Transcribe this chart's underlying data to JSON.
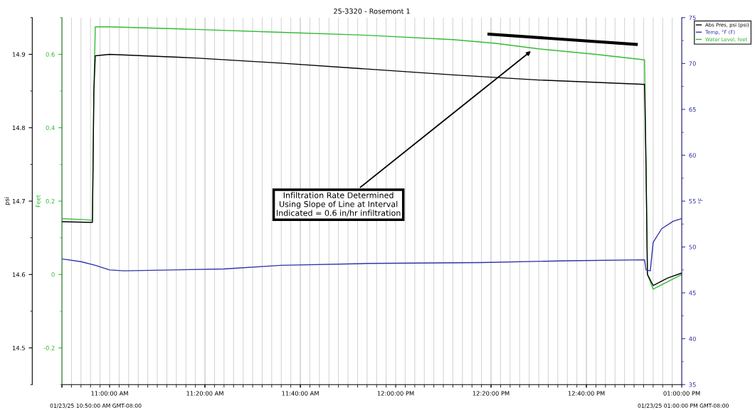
{
  "chart_data": {
    "type": "line",
    "title": "25-3320 - Rosemont 1",
    "ylabel": "Feet",
    "y2label": "psi",
    "y3label": "°F",
    "xlim": [
      10.8333,
      13.0
    ],
    "xticks": [
      {
        "value": 10.8333,
        "label": null
      },
      {
        "value": 11.0,
        "label": "11:00:00 AM"
      },
      {
        "value": 11.3333,
        "label": "11:20:00 AM"
      },
      {
        "value": 11.6667,
        "label": "11:40:00 AM"
      },
      {
        "value": 12.0,
        "label": "12:00:00 PM"
      },
      {
        "value": 12.3333,
        "label": "12:20:00 PM"
      },
      {
        "value": 12.6667,
        "label": "12:40:00 PM"
      },
      {
        "value": 13.0,
        "label": "01:00:00 PM"
      }
    ],
    "ylim": [
      -0.3,
      0.7
    ],
    "yticks": [
      -0.2,
      0,
      0.2,
      0.4,
      0.6
    ],
    "y2lim": [
      14.45,
      14.95
    ],
    "y2ticks": [
      14.5,
      14.6,
      14.7,
      14.8,
      14.9
    ],
    "y3lim": [
      35,
      75
    ],
    "y3ticks": [
      35,
      40,
      45,
      50,
      55,
      60,
      65,
      70,
      75
    ],
    "grid": "x",
    "legend": "top right",
    "marker": "none",
    "line_style": "solid",
    "series": [
      {
        "name": "Abs Pres, psi (psi)",
        "color": "#000000",
        "axis": "y2",
        "x": [
          10.8333,
          10.94,
          10.945,
          10.95,
          11.0,
          11.3,
          11.6,
          11.9,
          12.2,
          12.5,
          12.87,
          12.875,
          12.88,
          12.9,
          12.95,
          13.0
        ],
        "values": [
          14.672,
          14.671,
          14.85,
          14.898,
          14.9,
          14.895,
          14.888,
          14.88,
          14.872,
          14.865,
          14.859,
          14.75,
          14.6,
          14.585,
          14.595,
          14.602
        ]
      },
      {
        "name": "Temp, °F (F)",
        "color": "#3333aa",
        "axis": "y3",
        "x": [
          10.8333,
          10.9,
          10.95,
          11.0,
          11.05,
          11.4,
          11.6,
          11.9,
          12.3,
          12.6,
          12.87,
          12.875,
          12.89,
          12.9,
          12.93,
          12.97,
          13.0
        ],
        "values": [
          48.7,
          48.4,
          48.0,
          47.5,
          47.4,
          47.6,
          48.0,
          48.2,
          48.3,
          48.5,
          48.6,
          47.5,
          47.4,
          50.5,
          52.0,
          52.8,
          53.1
        ]
      },
      {
        "name": "Water Level, feet",
        "color": "#33bb33",
        "axis": "y",
        "x": [
          10.8333,
          10.9,
          10.94,
          10.945,
          10.95,
          11.0,
          11.3,
          11.6,
          11.9,
          12.2,
          12.35,
          12.5,
          12.7,
          12.87,
          12.875,
          12.88,
          12.9,
          12.95,
          13.0
        ],
        "values": [
          0.152,
          0.15,
          0.148,
          0.5,
          0.675,
          0.675,
          0.668,
          0.66,
          0.652,
          0.64,
          0.63,
          0.615,
          0.6,
          0.585,
          0.3,
          0.0,
          -0.04,
          -0.02,
          0.0
        ]
      },
      {
        "type": "line",
        "color": "#000000",
        "axis": "y",
        "x": [
          12.326,
          12.841
        ],
        "values": [
          0.655,
          0.627
        ]
      }
    ],
    "annotations": [
      {
        "text": "Infiltration Rate Determined\nUsing Slope of Line at Interval\nIndicated = 0.6 in/hr infiltration",
        "x": 12.478,
        "y": 0.612
      },
      "01/23/25 10:50:00 AM GMT-08:00",
      "01/23/25 01:00:00 PM GMT-08:00"
    ]
  }
}
